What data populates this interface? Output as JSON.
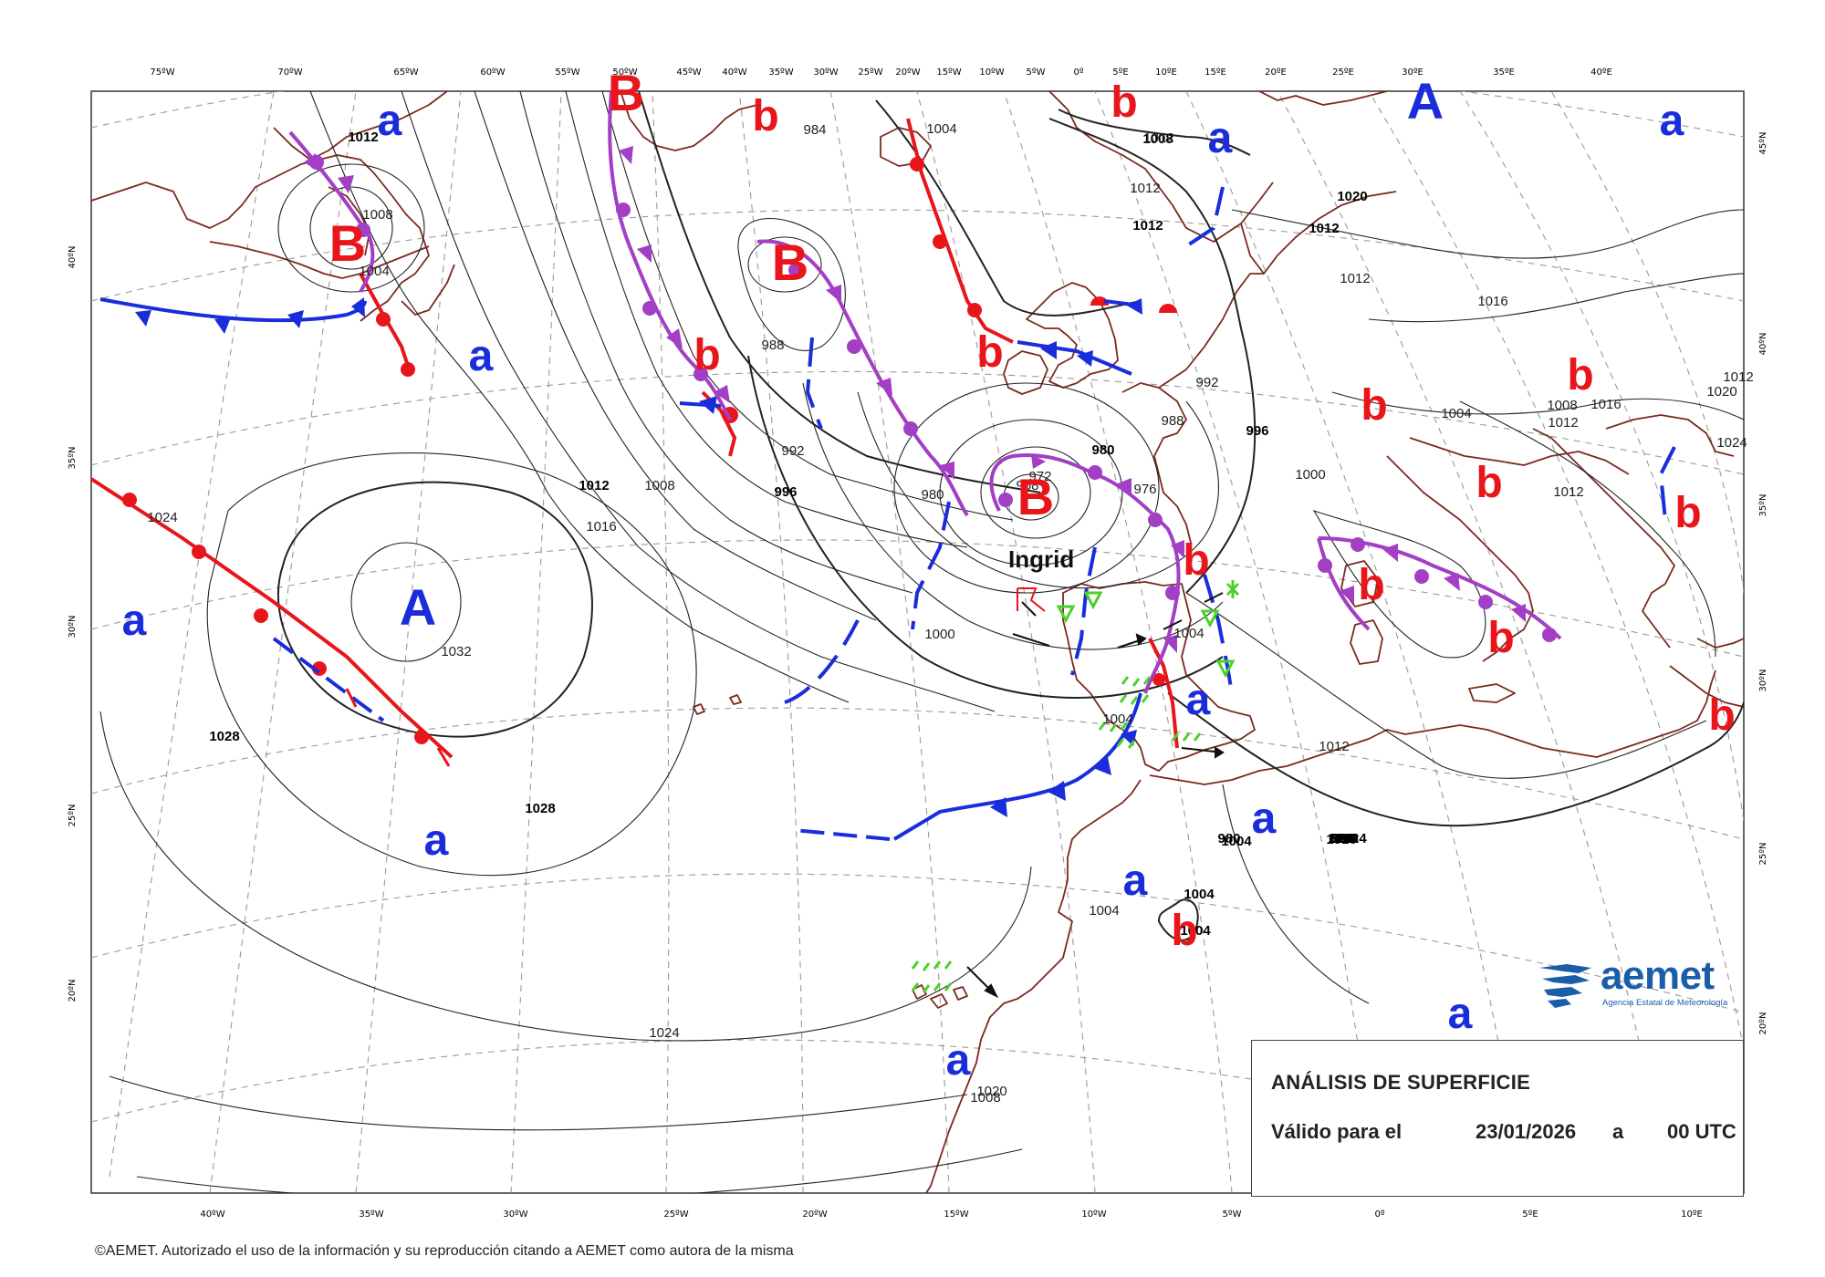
{
  "colors": {
    "high_pressure": "#1a2ddb",
    "low_pressure": "#e8151b",
    "warm_front": "#e8151b",
    "cold_front": "#1a2ddb",
    "occluded_front": "#a23fc4",
    "coastline": "#7a2a1e",
    "isobar": "#222222",
    "grid": "#9a9a9a",
    "precip": "#4ad12a",
    "brand": "#1b5ea8"
  },
  "top_longitudes": [
    "75ºW",
    "70ºW",
    "65ºW",
    "60ºW",
    "55ºW",
    "50ºW",
    "45ºW",
    "40ºW",
    "35ºW",
    "30ºW",
    "25ºW",
    "20ºW",
    "15ºW",
    "10ºW",
    "5ºW",
    "0º",
    "5ºE",
    "10ºE",
    "15ºE",
    "20ºE",
    "25ºE",
    "30ºE",
    "35ºE",
    "40ºE"
  ],
  "bottom_longitudes": [
    "40ºW",
    "35ºW",
    "30ºW",
    "25ºW",
    "20ºW",
    "15ºW",
    "10ºW",
    "5ºW",
    "0º",
    "5ºE",
    "10ºE"
  ],
  "left_latitudes": [
    "40ºN",
    "35ºN",
    "30ºN",
    "25ºN",
    "20ºN"
  ],
  "right_latitudes": [
    "45ºN",
    "40ºN",
    "35ºN",
    "30ºN",
    "25ºN",
    "20ºN"
  ],
  "pressure_centers": [
    {
      "type": "A",
      "label": "A",
      "size": "big"
    },
    {
      "type": "A",
      "label": "A",
      "size": "big"
    },
    {
      "type": "B",
      "label": "B",
      "size": "big"
    },
    {
      "type": "B",
      "label": "B",
      "size": "big"
    },
    {
      "type": "B",
      "label": "B",
      "size": "big"
    },
    {
      "type": "B",
      "label": "B",
      "size": "big"
    },
    {
      "type": "a",
      "label": "a",
      "size": "small"
    },
    {
      "type": "a",
      "label": "a",
      "size": "small"
    },
    {
      "type": "a",
      "label": "a",
      "size": "small"
    },
    {
      "type": "a",
      "label": "a",
      "size": "small"
    },
    {
      "type": "a",
      "label": "a",
      "size": "small"
    },
    {
      "type": "a",
      "label": "a",
      "size": "small"
    },
    {
      "type": "a",
      "label": "a",
      "size": "small"
    },
    {
      "type": "a",
      "label": "a",
      "size": "small"
    },
    {
      "type": "a",
      "label": "a",
      "size": "small"
    },
    {
      "type": "a",
      "label": "a",
      "size": "small"
    },
    {
      "type": "a",
      "label": "a",
      "size": "small"
    },
    {
      "type": "b",
      "label": "b",
      "size": "small"
    },
    {
      "type": "b",
      "label": "b",
      "size": "small"
    },
    {
      "type": "b",
      "label": "b",
      "size": "small"
    },
    {
      "type": "b",
      "label": "b",
      "size": "small"
    },
    {
      "type": "b",
      "label": "b",
      "size": "small"
    },
    {
      "type": "b",
      "label": "b",
      "size": "small"
    },
    {
      "type": "b",
      "label": "b",
      "size": "small"
    },
    {
      "type": "b",
      "label": "b",
      "size": "small"
    },
    {
      "type": "b",
      "label": "b",
      "size": "small"
    },
    {
      "type": "b",
      "label": "b",
      "size": "small"
    },
    {
      "type": "b",
      "label": "b",
      "size": "small"
    },
    {
      "type": "b",
      "label": "b",
      "size": "small"
    },
    {
      "type": "b",
      "label": "b",
      "size": "small"
    },
    {
      "type": "b",
      "label": "b",
      "size": "small"
    },
    {
      "type": "b",
      "label": "b",
      "size": "small"
    }
  ],
  "storm_name": "Ingrid",
  "isobar_labels": [
    "1012",
    "1008",
    "1004",
    "1032",
    "1028",
    "1028",
    "1024",
    "1024",
    "1020",
    "1016",
    "1012",
    "1008",
    "996",
    "992",
    "988",
    "984",
    "980",
    "1000",
    "972",
    "976",
    "968",
    "980",
    "988",
    "992",
    "996",
    "1000",
    "1004",
    "1004",
    "1004",
    "1008",
    "1012",
    "1012",
    "1016",
    "1020",
    "1024",
    "1012",
    "1012",
    "1016",
    "1004",
    "1004",
    "1004",
    "1004",
    "1008",
    "1004",
    "1008",
    "1012",
    "1012",
    "1012",
    "1012",
    "1012",
    "1016",
    "1020",
    "1024",
    "980",
    "984",
    "988",
    "984",
    "992",
    "1012",
    "1008",
    "1012",
    "1016"
  ],
  "info_box": {
    "title": "ANÁLISIS DE SUPERFICIE",
    "valid_label": "Válido para el",
    "date": "23/01/2026",
    "connector": "a",
    "hour": "00 UTC"
  },
  "logo": {
    "word": "aemet",
    "subtitle": "Agencia Estatal de Meteorología"
  },
  "copyright": "©AEMET. Autorizado el uso de la información y su reproducción citando a AEMET como autora de la misma"
}
